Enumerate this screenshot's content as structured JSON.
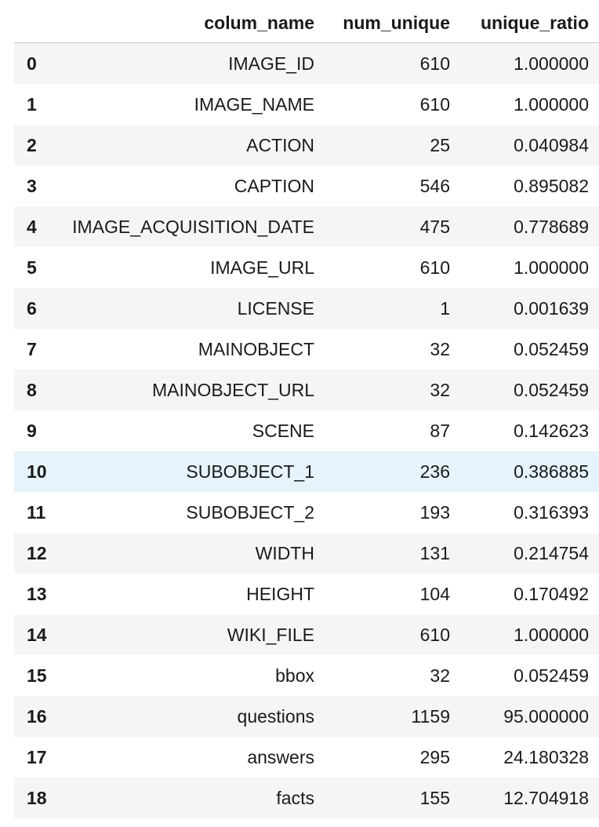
{
  "table": {
    "index_header": "",
    "columns": [
      "colum_name",
      "num_unique",
      "unique_ratio"
    ],
    "hovered_row": 10,
    "rows": [
      {
        "index": "0",
        "colum_name": "IMAGE_ID",
        "num_unique": "610",
        "unique_ratio": "1.000000"
      },
      {
        "index": "1",
        "colum_name": "IMAGE_NAME",
        "num_unique": "610",
        "unique_ratio": "1.000000"
      },
      {
        "index": "2",
        "colum_name": "ACTION",
        "num_unique": "25",
        "unique_ratio": "0.040984"
      },
      {
        "index": "3",
        "colum_name": "CAPTION",
        "num_unique": "546",
        "unique_ratio": "0.895082"
      },
      {
        "index": "4",
        "colum_name": "IMAGE_ACQUISITION_DATE",
        "num_unique": "475",
        "unique_ratio": "0.778689"
      },
      {
        "index": "5",
        "colum_name": "IMAGE_URL",
        "num_unique": "610",
        "unique_ratio": "1.000000"
      },
      {
        "index": "6",
        "colum_name": "LICENSE",
        "num_unique": "1",
        "unique_ratio": "0.001639"
      },
      {
        "index": "7",
        "colum_name": "MAINOBJECT",
        "num_unique": "32",
        "unique_ratio": "0.052459"
      },
      {
        "index": "8",
        "colum_name": "MAINOBJECT_URL",
        "num_unique": "32",
        "unique_ratio": "0.052459"
      },
      {
        "index": "9",
        "colum_name": "SCENE",
        "num_unique": "87",
        "unique_ratio": "0.142623"
      },
      {
        "index": "10",
        "colum_name": "SUBOBJECT_1",
        "num_unique": "236",
        "unique_ratio": "0.386885"
      },
      {
        "index": "11",
        "colum_name": "SUBOBJECT_2",
        "num_unique": "193",
        "unique_ratio": "0.316393"
      },
      {
        "index": "12",
        "colum_name": "WIDTH",
        "num_unique": "131",
        "unique_ratio": "0.214754"
      },
      {
        "index": "13",
        "colum_name": "HEIGHT",
        "num_unique": "104",
        "unique_ratio": "0.170492"
      },
      {
        "index": "14",
        "colum_name": "WIKI_FILE",
        "num_unique": "610",
        "unique_ratio": "1.000000"
      },
      {
        "index": "15",
        "colum_name": "bbox",
        "num_unique": "32",
        "unique_ratio": "0.052459"
      },
      {
        "index": "16",
        "colum_name": "questions",
        "num_unique": "1159",
        "unique_ratio": "95.000000"
      },
      {
        "index": "17",
        "colum_name": "answers",
        "num_unique": "295",
        "unique_ratio": "24.180328"
      },
      {
        "index": "18",
        "colum_name": "facts",
        "num_unique": "155",
        "unique_ratio": "12.704918"
      }
    ]
  },
  "colors": {
    "row_stripe": "#f5f5f5",
    "row_hover": "#e6f3fb",
    "header_rule": "#c9c9c9"
  }
}
